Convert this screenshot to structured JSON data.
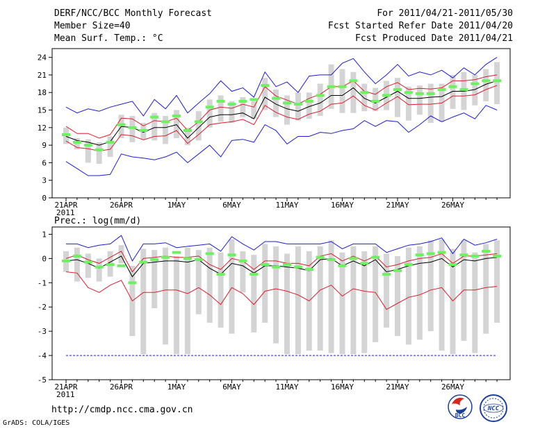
{
  "header": {
    "title": "DERF/NCC/BCC Monthly Forecast",
    "member_size": "Member Size=40",
    "variable_top": "Mean Surf. Temp.: °C",
    "forecast_range": "For 2011/04/21-2011/05/30",
    "started_refer": "Fcst Started Refer Date 2011/04/20",
    "produced": "Fcst Produced Date 2011/04/21"
  },
  "footer": {
    "url": "http://cmdp.ncc.cma.gov.cn",
    "grads_credit": "GrADS: COLA/IGES",
    "logo_bcc_text": "BCC",
    "logo_ncc_text": "NCC"
  },
  "colors": {
    "bar": "#d4d4d4",
    "mean": "#000000",
    "spread": "#dd1c2c",
    "extreme": "#1b1bd9",
    "marker": "#6cf25e",
    "ref": "#1b1bd9"
  },
  "chart_data": [
    {
      "type": "line",
      "title": "Mean Surf. Temp.: °C",
      "x_labels": [
        "21APR",
        "26APR",
        "1MAY",
        "6MAY",
        "11MAY",
        "16MAY",
        "21MAY",
        "26MAY"
      ],
      "x_sub_label": "2011",
      "x_label_days": [
        1,
        6,
        11,
        16,
        21,
        26,
        31,
        36
      ],
      "ylim": [
        0,
        25.5
      ],
      "yticks": [
        0,
        3,
        6,
        9,
        12,
        15,
        18,
        21,
        24
      ],
      "days": [
        1,
        2,
        3,
        4,
        5,
        6,
        7,
        8,
        9,
        10,
        11,
        12,
        13,
        14,
        15,
        16,
        17,
        18,
        19,
        20,
        21,
        22,
        23,
        24,
        25,
        26,
        27,
        28,
        29,
        30,
        31,
        32,
        33,
        34,
        35,
        36,
        37,
        38,
        39,
        40
      ],
      "series": [
        {
          "name": "ensemble mean",
          "values": [
            10.5,
            9.8,
            9.5,
            9.0,
            9.6,
            12.2,
            12.0,
            11.2,
            12.0,
            12.0,
            12.5,
            10.2,
            12.0,
            13.8,
            14.2,
            14.2,
            14.5,
            13.5,
            17.2,
            16.0,
            15.2,
            14.8,
            15.6,
            16.2,
            17.5,
            17.5,
            18.8,
            17.0,
            16.2,
            17.2,
            18.2,
            17.0,
            17.0,
            17.2,
            17.3,
            18.2,
            18.2,
            18.5,
            19.4,
            20.0
          ]
        },
        {
          "name": "upper spread",
          "values": [
            12.2,
            11.0,
            11.0,
            10.2,
            10.8,
            13.6,
            13.5,
            12.3,
            13.2,
            13.0,
            13.6,
            11.5,
            13.0,
            15.0,
            15.5,
            15.3,
            16.0,
            15.5,
            19.0,
            17.4,
            16.7,
            16.0,
            17.0,
            17.7,
            19.0,
            19.0,
            20.0,
            18.2,
            17.7,
            19.0,
            19.7,
            18.5,
            18.7,
            18.6,
            18.8,
            20.0,
            20.0,
            20.2,
            20.7,
            21.0
          ]
        },
        {
          "name": "lower spread",
          "values": [
            9.7,
            8.6,
            8.4,
            8.0,
            8.3,
            10.8,
            10.6,
            9.9,
            10.5,
            10.6,
            11.5,
            9.3,
            10.8,
            12.5,
            12.8,
            13.0,
            13.4,
            12.5,
            15.8,
            14.6,
            13.8,
            13.4,
            14.3,
            14.8,
            16.0,
            16.2,
            17.4,
            15.8,
            15.0,
            16.2,
            17.3,
            15.9,
            16.0,
            16.0,
            16.2,
            17.4,
            17.4,
            17.6,
            18.5,
            19.2
          ]
        },
        {
          "name": "ensemble max",
          "values": [
            15.5,
            14.5,
            15.2,
            14.8,
            15.5,
            16.0,
            16.5,
            14.0,
            16.8,
            15.2,
            17.5,
            14.5,
            16.2,
            17.8,
            20.0,
            18.2,
            18.8,
            17.2,
            21.5,
            19.0,
            19.8,
            18.0,
            20.8,
            21.0,
            21.0,
            23.0,
            23.8,
            21.5,
            19.5,
            21.0,
            22.8,
            20.8,
            21.5,
            21.0,
            21.8,
            20.5,
            22.2,
            21.0,
            22.8,
            24.0
          ]
        },
        {
          "name": "ensemble min",
          "values": [
            6.2,
            5.0,
            3.8,
            3.8,
            4.0,
            7.5,
            7.0,
            6.8,
            6.5,
            7.0,
            7.8,
            6.0,
            7.5,
            9.0,
            7.0,
            9.8,
            10.0,
            9.5,
            12.5,
            11.5,
            9.2,
            10.5,
            10.5,
            11.2,
            11.0,
            11.5,
            11.8,
            13.2,
            12.2,
            13.2,
            13.0,
            11.2,
            12.5,
            14.0,
            13.0,
            13.8,
            14.5,
            13.5,
            15.8,
            15.0
          ]
        },
        {
          "name": "green marker",
          "values": [
            10.8,
            9.5,
            9.0,
            8.2,
            9.5,
            12.5,
            12.0,
            11.5,
            13.8,
            13.0,
            14.0,
            11.5,
            13.0,
            15.5,
            16.5,
            16.0,
            16.5,
            16.8,
            19.2,
            17.0,
            16.2,
            16.0,
            16.5,
            17.5,
            19.0,
            19.0,
            20.0,
            18.0,
            16.5,
            17.5,
            18.5,
            18.0,
            17.8,
            17.8,
            18.5,
            19.0,
            18.5,
            19.5,
            20.0,
            20.0
          ]
        }
      ],
      "box_range": {
        "name": "member range bar",
        "low": [
          9.2,
          8.3,
          6.0,
          5.8,
          7.0,
          10.2,
          9.5,
          10.0,
          9.8,
          9.2,
          10.2,
          9.0,
          9.8,
          12.0,
          13.0,
          12.8,
          13.8,
          13.5,
          15.0,
          13.8,
          12.5,
          13.2,
          13.5,
          14.0,
          15.2,
          14.5,
          14.5,
          14.8,
          14.8,
          15.0,
          13.8,
          13.2,
          14.2,
          12.8,
          13.0,
          15.2,
          15.0,
          15.8,
          16.5,
          16.0
        ],
        "high": [
          12.0,
          10.2,
          10.0,
          9.5,
          10.5,
          14.2,
          14.0,
          12.8,
          14.5,
          14.0,
          15.0,
          12.0,
          14.8,
          16.8,
          17.5,
          16.5,
          17.2,
          16.5,
          20.5,
          18.5,
          17.5,
          18.0,
          18.0,
          19.5,
          22.8,
          22.0,
          21.5,
          19.5,
          18.8,
          20.0,
          20.5,
          19.0,
          19.2,
          19.5,
          19.5,
          21.0,
          21.5,
          21.0,
          22.0,
          23.2
        ]
      }
    },
    {
      "type": "line",
      "title": "Prec.: log(mm/d)",
      "x_labels": [
        "21APR",
        "26APR",
        "1MAY",
        "6MAY",
        "11MAY",
        "16MAY",
        "21MAY",
        "26MAY"
      ],
      "x_sub_label": "2011",
      "x_label_days": [
        1,
        6,
        11,
        16,
        21,
        26,
        31,
        36
      ],
      "ylim": [
        -5,
        1.3
      ],
      "yticks": [
        -5,
        -4,
        -3,
        -2,
        -1,
        0,
        1
      ],
      "reference_line": {
        "name": "dashed floor",
        "value": -4
      },
      "days": [
        1,
        2,
        3,
        4,
        5,
        6,
        7,
        8,
        9,
        10,
        11,
        12,
        13,
        14,
        15,
        16,
        17,
        18,
        19,
        20,
        21,
        22,
        23,
        24,
        25,
        26,
        27,
        28,
        29,
        30,
        31,
        32,
        33,
        34,
        35,
        36,
        37,
        38,
        39,
        40
      ],
      "series": [
        {
          "name": "ensemble mean",
          "values": [
            -0.1,
            -0.05,
            -0.2,
            -0.4,
            -0.15,
            0.1,
            -0.75,
            -0.2,
            -0.15,
            -0.1,
            -0.1,
            -0.15,
            -0.05,
            -0.4,
            -0.65,
            -0.2,
            -0.3,
            -0.6,
            -0.3,
            -0.3,
            -0.35,
            -0.4,
            -0.5,
            -0.05,
            0.0,
            -0.3,
            -0.1,
            -0.3,
            -0.05,
            -0.55,
            -0.45,
            -0.3,
            -0.2,
            -0.15,
            0.0,
            -0.35,
            -0.05,
            -0.1,
            0.0,
            0.05
          ]
        },
        {
          "name": "upper spread",
          "values": [
            0.0,
            0.15,
            -0.05,
            -0.2,
            0.05,
            0.3,
            -0.55,
            0.0,
            0.05,
            0.1,
            0.05,
            0.05,
            0.1,
            -0.25,
            -0.45,
            0.0,
            -0.1,
            -0.45,
            -0.1,
            -0.1,
            -0.2,
            -0.2,
            -0.3,
            0.1,
            0.2,
            -0.1,
            0.1,
            -0.1,
            0.1,
            -0.35,
            -0.25,
            -0.1,
            0.0,
            0.05,
            0.2,
            -0.2,
            0.1,
            0.1,
            0.15,
            0.2
          ]
        },
        {
          "name": "lower spread",
          "values": [
            -0.55,
            -0.6,
            -1.2,
            -1.4,
            -1.1,
            -0.9,
            -1.75,
            -1.4,
            -1.4,
            -1.3,
            -1.3,
            -1.45,
            -1.2,
            -1.5,
            -1.9,
            -1.2,
            -1.45,
            -1.9,
            -1.35,
            -1.25,
            -1.35,
            -1.5,
            -1.75,
            -1.3,
            -1.1,
            -1.55,
            -1.25,
            -1.35,
            -1.4,
            -2.1,
            -1.85,
            -1.6,
            -1.5,
            -1.3,
            -1.2,
            -1.75,
            -1.3,
            -1.3,
            -1.2,
            -1.15
          ]
        },
        {
          "name": "ensemble max",
          "values": [
            0.6,
            0.6,
            0.45,
            0.55,
            0.6,
            0.95,
            -0.1,
            0.6,
            0.6,
            0.65,
            0.45,
            0.5,
            0.55,
            0.6,
            0.3,
            0.9,
            0.6,
            0.35,
            0.7,
            0.7,
            0.6,
            0.6,
            0.6,
            0.6,
            0.7,
            0.4,
            0.6,
            0.6,
            0.6,
            0.25,
            0.4,
            0.55,
            0.6,
            0.7,
            0.85,
            0.2,
            0.8,
            0.55,
            0.65,
            0.8
          ]
        },
        {
          "name": "green marker",
          "values": [
            -0.1,
            0.1,
            -0.15,
            -0.35,
            -0.25,
            -0.3,
            -1.0,
            -0.15,
            -0.05,
            0.05,
            0.25,
            0.0,
            -0.05,
            0.2,
            -0.65,
            0.15,
            -0.1,
            -0.65,
            -0.25,
            -0.35,
            -0.25,
            -0.35,
            -0.45,
            0.05,
            -0.05,
            -0.3,
            0.0,
            -0.2,
            0.05,
            -0.65,
            -0.5,
            -0.25,
            0.15,
            0.2,
            0.25,
            -0.25,
            0.15,
            0.1,
            0.3,
            0.1
          ]
        }
      ],
      "box_range": {
        "name": "member range bar",
        "low": [
          -0.55,
          -0.95,
          -0.8,
          -0.95,
          -0.75,
          -0.2,
          -3.2,
          -3.95,
          -2.05,
          -3.55,
          -3.95,
          -3.95,
          -2.3,
          -2.65,
          -2.85,
          -3.1,
          -1.4,
          -3.05,
          -2.65,
          -3.5,
          -3.95,
          -3.95,
          -3.8,
          -3.8,
          -3.9,
          -3.95,
          -3.95,
          -3.9,
          -3.45,
          -2.85,
          -3.2,
          -3.55,
          -3.35,
          -3.0,
          -3.8,
          -3.95,
          -3.4,
          -3.9,
          -3.1,
          -2.65
        ],
        "high": [
          0.3,
          0.45,
          0.2,
          0.0,
          0.3,
          0.55,
          -0.3,
          0.4,
          0.35,
          0.45,
          0.1,
          0.45,
          0.35,
          0.45,
          0.25,
          0.8,
          0.3,
          0.15,
          0.6,
          0.5,
          0.2,
          0.5,
          0.3,
          0.5,
          0.75,
          0.25,
          0.5,
          0.3,
          0.5,
          0.2,
          0.1,
          0.45,
          0.5,
          0.75,
          0.8,
          0.4,
          0.75,
          0.25,
          0.6,
          0.75
        ]
      }
    }
  ]
}
